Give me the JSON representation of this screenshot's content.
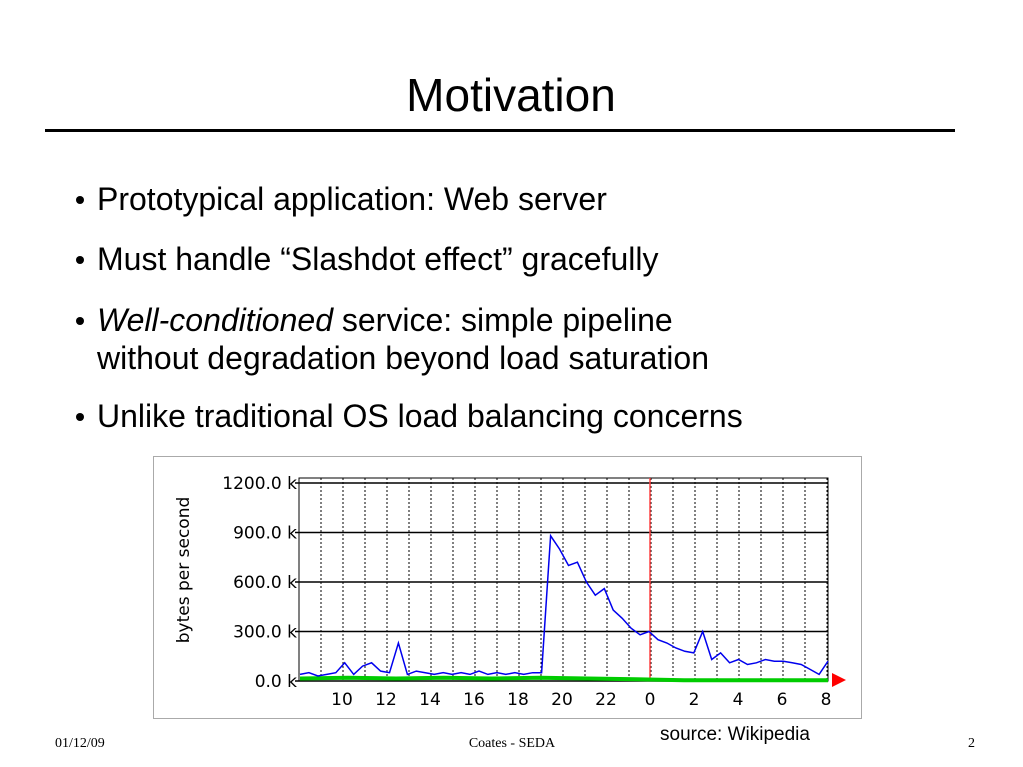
{
  "slide": {
    "title": "Motivation",
    "bullets": [
      {
        "text": "Prototypical application: Web server"
      },
      {
        "text": "Must handle “Slashdot effect” gracefully"
      },
      {
        "emphasis": "Well-conditioned",
        "text": " service: simple pipeline",
        "continuation": "without degradation beyond load saturation"
      },
      {
        "text": "Unlike traditional OS load balancing concerns"
      }
    ],
    "source": "source: Wikipedia",
    "footer": {
      "date": "01/12/09",
      "center": "Coates - SEDA",
      "page": "2"
    }
  },
  "chart": {
    "type": "line",
    "y_label": "bytes per second",
    "categories": [
      "10",
      "12",
      "14",
      "16",
      "18",
      "20",
      "22",
      "0",
      "2",
      "4",
      "6",
      "8"
    ],
    "ylim": [
      0,
      1230
    ],
    "yticks": [
      {
        "value": 0,
        "label": "0.0 k"
      },
      {
        "value": 300,
        "label": "300.0 k"
      },
      {
        "value": 600,
        "label": "600.0 k"
      },
      {
        "value": 900,
        "label": "900.0 k"
      },
      {
        "value": 1200,
        "label": "1200.0 k"
      }
    ],
    "grid": true,
    "series": [
      {
        "color": "#0000ee",
        "values": [
          40,
          50,
          30,
          40,
          50,
          110,
          40,
          90,
          110,
          60,
          50,
          230,
          40,
          60,
          50,
          40,
          50,
          40,
          50,
          40,
          60,
          40,
          50,
          40,
          50,
          40,
          50,
          50,
          880,
          800,
          700,
          720,
          600,
          520,
          560,
          430,
          380,
          320,
          280,
          300,
          250,
          230,
          200,
          180,
          170,
          300,
          130,
          170,
          110,
          130,
          100,
          110,
          130,
          120,
          120,
          110,
          100,
          70,
          40,
          120
        ]
      },
      {
        "color": "#00cc00",
        "values": [
          15,
          20,
          15,
          20,
          15,
          20,
          15,
          10,
          5,
          5,
          5,
          5
        ]
      }
    ]
  }
}
